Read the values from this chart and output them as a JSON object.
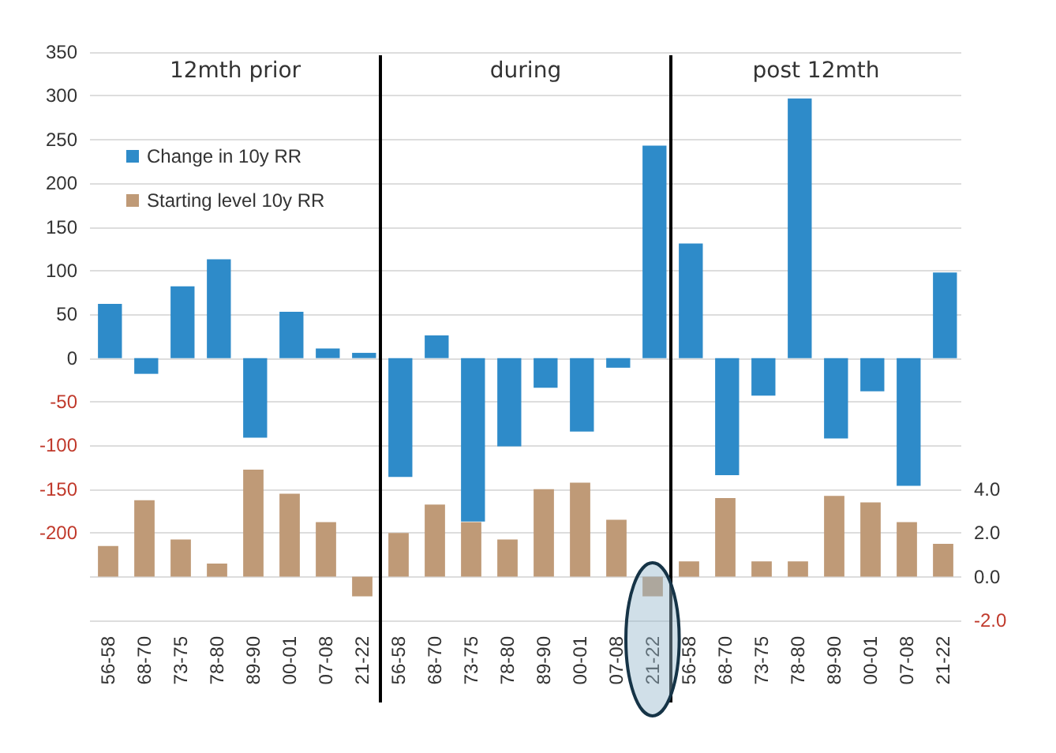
{
  "chart_data": {
    "type": "bar",
    "categories": [
      "56-58",
      "68-70",
      "73-75",
      "78-80",
      "89-90",
      "00-01",
      "07-08",
      "21-22",
      "56-58",
      "68-70",
      "73-75",
      "78-80",
      "89-90",
      "00-01",
      "07-08",
      "21-22",
      "56-58",
      "68-70",
      "73-75",
      "78-80",
      "89-90",
      "00-01",
      "07-08",
      "21-22"
    ],
    "series": [
      {
        "name": "Change in 10y RR",
        "color": "#2e8bc9",
        "values": [
          62,
          -18,
          82,
          113,
          -91,
          53,
          11,
          6,
          -136,
          26,
          -187,
          -101,
          -34,
          -84,
          -11,
          243,
          131,
          -134,
          -43,
          297,
          -92,
          -38,
          -146,
          98
        ]
      },
      {
        "name": "Starting level 10y RR",
        "color": "#bf9a77",
        "axis": "y2",
        "values": [
          1.4,
          3.5,
          1.7,
          0.6,
          4.9,
          3.8,
          2.5,
          -0.9,
          2.0,
          3.3,
          2.5,
          1.7,
          4.0,
          4.3,
          2.6,
          -0.9,
          0.7,
          3.6,
          0.7,
          0.7,
          3.7,
          3.4,
          2.5,
          1.5
        ]
      }
    ],
    "annotations": [
      "12mth prior",
      "during",
      "post 12mth"
    ],
    "ylim": [
      -300,
      350
    ],
    "yticks": [
      350,
      300,
      250,
      200,
      150,
      100,
      50,
      0,
      -50,
      -100,
      -150,
      -200,
      {
        "value": -250,
        "label": null
      },
      {
        "value": -300,
        "label": null
      }
    ],
    "y2lim": [
      -2,
      24
    ],
    "y2ticks": [
      {
        "value": 4,
        "label": "4.0"
      },
      {
        "value": 2,
        "label": "2.0"
      },
      {
        "value": 0,
        "label": "0.0"
      },
      {
        "value": -2,
        "label": "-2.0"
      }
    ],
    "grid": "y",
    "legend": "top left"
  }
}
